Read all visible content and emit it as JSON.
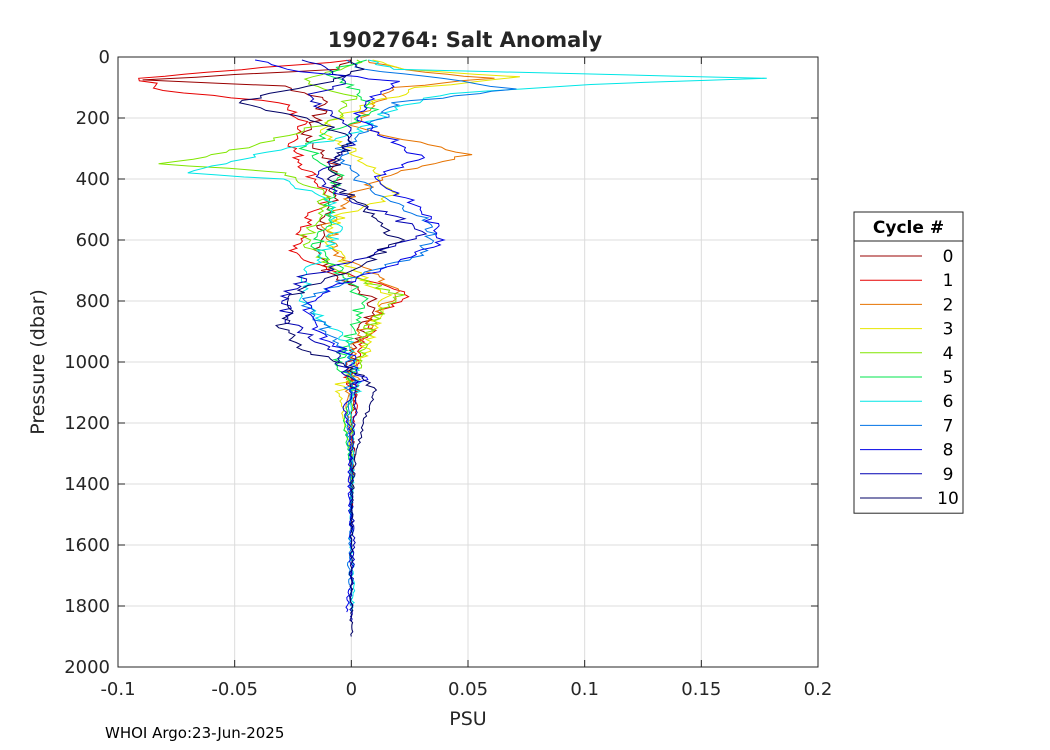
{
  "footer": "WHOI Argo:23-Jun-2025",
  "chart_data": {
    "type": "line",
    "title": "1902764: Salt Anomaly",
    "xlabel": "PSU",
    "ylabel": "Pressure (dbar)",
    "xlim": [
      -0.1,
      0.2
    ],
    "ylim": [
      0,
      2000
    ],
    "y_reversed": true,
    "grid": true,
    "x_ticks": [
      -0.1,
      -0.05,
      0,
      0.05,
      0.1,
      0.15,
      0.2
    ],
    "x_tick_labels": [
      "-0.1",
      "-0.05",
      "0",
      "0.05",
      "0.1",
      "0.15",
      "0.2"
    ],
    "y_ticks": [
      0,
      200,
      400,
      600,
      800,
      1000,
      1200,
      1400,
      1600,
      1800,
      2000
    ],
    "y_tick_labels": [
      "0",
      "200",
      "400",
      "600",
      "800",
      "1000",
      "1200",
      "1400",
      "1600",
      "1800",
      "2000"
    ],
    "legend": {
      "title": "Cycle #",
      "position": "right"
    },
    "series": [
      {
        "name": "0",
        "color": "#990000",
        "points": [
          [
            0.0,
            10
          ],
          [
            -0.005,
            40
          ],
          [
            -0.09,
            75
          ],
          [
            -0.03,
            95
          ],
          [
            -0.01,
            140
          ],
          [
            -0.015,
            200
          ],
          [
            -0.02,
            260
          ],
          [
            -0.01,
            330
          ],
          [
            -0.005,
            400
          ],
          [
            -0.01,
            500
          ],
          [
            -0.015,
            600
          ],
          [
            -0.01,
            700
          ],
          [
            0.01,
            800
          ],
          [
            0.005,
            900
          ],
          [
            0.0,
            1000
          ],
          [
            0.002,
            1100
          ],
          [
            0.0,
            1200
          ],
          [
            0.001,
            1300
          ],
          [
            0.0,
            1400
          ],
          [
            0.0,
            1500
          ]
        ]
      },
      {
        "name": "1",
        "color": "#e60000",
        "points": [
          [
            0.0,
            10
          ],
          [
            -0.06,
            50
          ],
          [
            -0.09,
            70
          ],
          [
            -0.08,
            110
          ],
          [
            -0.03,
            150
          ],
          [
            -0.02,
            220
          ],
          [
            -0.025,
            300
          ],
          [
            -0.02,
            360
          ],
          [
            -0.01,
            450
          ],
          [
            -0.02,
            550
          ],
          [
            -0.025,
            650
          ],
          [
            0.0,
            720
          ],
          [
            0.025,
            770
          ],
          [
            0.01,
            850
          ],
          [
            0.005,
            950
          ],
          [
            0.0,
            1050
          ],
          [
            0.002,
            1150
          ],
          [
            0.0,
            1250
          ],
          [
            0.0,
            1400
          ],
          [
            0.0,
            1550
          ]
        ]
      },
      {
        "name": "2",
        "color": "#e67300",
        "points": [
          [
            0.005,
            10
          ],
          [
            0.03,
            50
          ],
          [
            0.06,
            70
          ],
          [
            0.02,
            100
          ],
          [
            0.01,
            160
          ],
          [
            0.0,
            230
          ],
          [
            0.05,
            320
          ],
          [
            0.02,
            380
          ],
          [
            0.0,
            450
          ],
          [
            -0.01,
            550
          ],
          [
            -0.005,
            650
          ],
          [
            0.02,
            760
          ],
          [
            0.01,
            850
          ],
          [
            0.0,
            950
          ],
          [
            0.001,
            1050
          ],
          [
            -0.002,
            1150
          ],
          [
            0.0,
            1250
          ],
          [
            0.0,
            1400
          ]
        ]
      },
      {
        "name": "3",
        "color": "#e6e600",
        "points": [
          [
            0.01,
            10
          ],
          [
            0.02,
            40
          ],
          [
            0.07,
            65
          ],
          [
            0.03,
            100
          ],
          [
            0.005,
            160
          ],
          [
            -0.015,
            240
          ],
          [
            0.0,
            300
          ],
          [
            0.01,
            380
          ],
          [
            0.02,
            450
          ],
          [
            -0.005,
            520
          ],
          [
            -0.01,
            600
          ],
          [
            0.0,
            700
          ],
          [
            0.015,
            780
          ],
          [
            0.01,
            880
          ],
          [
            0.005,
            980
          ],
          [
            -0.005,
            1080
          ],
          [
            -0.003,
            1200
          ],
          [
            0.0,
            1300
          ],
          [
            0.0,
            1450
          ]
        ]
      },
      {
        "name": "4",
        "color": "#80e600",
        "points": [
          [
            0.005,
            10
          ],
          [
            -0.01,
            50
          ],
          [
            -0.02,
            80
          ],
          [
            0.0,
            130
          ],
          [
            -0.005,
            200
          ],
          [
            -0.04,
            290
          ],
          [
            -0.08,
            350
          ],
          [
            -0.03,
            380
          ],
          [
            -0.01,
            450
          ],
          [
            -0.015,
            520
          ],
          [
            -0.02,
            600
          ],
          [
            -0.01,
            680
          ],
          [
            0.02,
            780
          ],
          [
            0.01,
            850
          ],
          [
            0.005,
            950
          ],
          [
            0.0,
            1050
          ],
          [
            0.0,
            1150
          ],
          [
            0.0,
            1300
          ],
          [
            0.0,
            1450
          ]
        ]
      },
      {
        "name": "5",
        "color": "#00e64d",
        "points": [
          [
            0.005,
            10
          ],
          [
            -0.01,
            50
          ],
          [
            0.0,
            100
          ],
          [
            0.01,
            180
          ],
          [
            -0.01,
            250
          ],
          [
            -0.02,
            300
          ],
          [
            -0.005,
            380
          ],
          [
            -0.01,
            460
          ],
          [
            -0.01,
            550
          ],
          [
            -0.015,
            620
          ],
          [
            -0.005,
            700
          ],
          [
            0.005,
            800
          ],
          [
            0.0,
            900
          ],
          [
            -0.005,
            1000
          ],
          [
            0.0,
            1100
          ],
          [
            -0.003,
            1200
          ],
          [
            0.0,
            1350
          ],
          [
            0.0,
            1500
          ]
        ]
      },
      {
        "name": "6",
        "color": "#00e6e6",
        "points": [
          [
            0.005,
            10
          ],
          [
            0.02,
            40
          ],
          [
            0.18,
            70
          ],
          [
            0.1,
            90
          ],
          [
            0.04,
            120
          ],
          [
            0.015,
            180
          ],
          [
            0.0,
            260
          ],
          [
            -0.04,
            320
          ],
          [
            -0.07,
            380
          ],
          [
            -0.03,
            400
          ],
          [
            -0.01,
            470
          ],
          [
            -0.005,
            550
          ],
          [
            -0.01,
            620
          ],
          [
            -0.02,
            720
          ],
          [
            -0.02,
            800
          ],
          [
            -0.01,
            880
          ],
          [
            0.0,
            950
          ],
          [
            0.002,
            1050
          ],
          [
            0.0,
            1150
          ],
          [
            0.001,
            1300
          ],
          [
            0.0,
            1450
          ],
          [
            0.0,
            1600
          ],
          [
            0.001,
            1750
          ],
          [
            0.0,
            1820
          ]
        ]
      },
      {
        "name": "7",
        "color": "#0073e6",
        "points": [
          [
            0.0,
            10
          ],
          [
            0.005,
            40
          ],
          [
            0.04,
            70
          ],
          [
            0.07,
            105
          ],
          [
            0.02,
            150
          ],
          [
            0.01,
            220
          ],
          [
            -0.005,
            300
          ],
          [
            0.0,
            380
          ],
          [
            0.01,
            450
          ],
          [
            0.03,
            520
          ],
          [
            0.035,
            580
          ],
          [
            0.03,
            650
          ],
          [
            0.0,
            720
          ],
          [
            -0.02,
            800
          ],
          [
            -0.01,
            900
          ],
          [
            0.0,
            1000
          ],
          [
            0.0,
            1100
          ],
          [
            -0.002,
            1200
          ],
          [
            0.0,
            1350
          ],
          [
            0.0,
            1500
          ],
          [
            -0.001,
            1650
          ],
          [
            0.0,
            1800
          ]
        ]
      },
      {
        "name": "8",
        "color": "#0000e6",
        "points": [
          [
            -0.04,
            10
          ],
          [
            -0.03,
            40
          ],
          [
            0.02,
            80
          ],
          [
            0.01,
            130
          ],
          [
            0.0,
            200
          ],
          [
            0.02,
            280
          ],
          [
            0.03,
            330
          ],
          [
            0.01,
            400
          ],
          [
            0.03,
            500
          ],
          [
            0.04,
            600
          ],
          [
            0.02,
            680
          ],
          [
            -0.01,
            760
          ],
          [
            -0.02,
            830
          ],
          [
            -0.015,
            900
          ],
          [
            0.0,
            980
          ],
          [
            0.005,
            1050
          ],
          [
            -0.003,
            1150
          ],
          [
            0.0,
            1250
          ],
          [
            -0.001,
            1400
          ],
          [
            0.0,
            1550
          ],
          [
            0.0,
            1700
          ],
          [
            -0.002,
            1820
          ]
        ]
      },
      {
        "name": "9",
        "color": "#0000b3",
        "points": [
          [
            -0.02,
            10
          ],
          [
            -0.01,
            40
          ],
          [
            0.0,
            80
          ],
          [
            -0.02,
            130
          ],
          [
            -0.005,
            200
          ],
          [
            0.0,
            280
          ],
          [
            -0.01,
            350
          ],
          [
            -0.015,
            400
          ],
          [
            0.0,
            470
          ],
          [
            0.02,
            530
          ],
          [
            0.03,
            580
          ],
          [
            0.01,
            650
          ],
          [
            -0.02,
            720
          ],
          [
            -0.03,
            800
          ],
          [
            -0.025,
            880
          ],
          [
            -0.01,
            950
          ],
          [
            0.0,
            1050
          ],
          [
            0.002,
            1150
          ],
          [
            0.0,
            1300
          ],
          [
            0.0,
            1450
          ],
          [
            0.001,
            1600
          ],
          [
            0.0,
            1750
          ],
          [
            0.0,
            1850
          ]
        ]
      },
      {
        "name": "10",
        "color": "#000066",
        "points": [
          [
            0.0,
            10
          ],
          [
            0.005,
            40
          ],
          [
            -0.01,
            80
          ],
          [
            -0.05,
            150
          ],
          [
            -0.02,
            200
          ],
          [
            0.0,
            260
          ],
          [
            -0.005,
            330
          ],
          [
            -0.01,
            400
          ],
          [
            0.0,
            460
          ],
          [
            0.01,
            530
          ],
          [
            0.02,
            600
          ],
          [
            0.005,
            680
          ],
          [
            -0.025,
            780
          ],
          [
            -0.03,
            880
          ],
          [
            -0.02,
            960
          ],
          [
            0.0,
            1020
          ],
          [
            0.01,
            1100
          ],
          [
            0.005,
            1200
          ],
          [
            0.001,
            1350
          ],
          [
            0.0,
            1500
          ],
          [
            0.0,
            1650
          ],
          [
            0.0,
            1800
          ],
          [
            0.0,
            1900
          ]
        ]
      }
    ]
  }
}
